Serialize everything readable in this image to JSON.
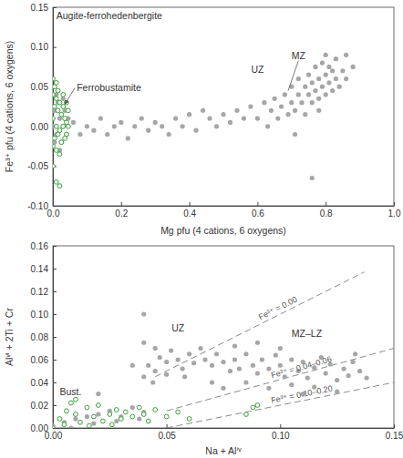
{
  "chart_data": [
    {
      "type": "scatter",
      "x_label": "Mg pfu (4 cations, 6 oxygens)",
      "y_label": "Fe³⁺ pfu (4 cations, 6 oxygens)",
      "annotations": [
        "Augite-ferrohedenbergite",
        "Ferrobustamite",
        "UZ",
        "MZ"
      ],
      "xlim": [
        0,
        1.0
      ],
      "ylim": [
        -0.1,
        0.15
      ],
      "xticks": [
        {
          "value": 0,
          "label": "0.0"
        },
        {
          "value": 0.2,
          "label": "0.2"
        },
        {
          "value": 0.4,
          "label": "0.4"
        },
        {
          "value": 0.6,
          "label": "0.6"
        },
        {
          "value": 0.8,
          "label": "0.8"
        },
        {
          "value": 1.0,
          "label": "1.0"
        }
      ],
      "yticks": [
        {
          "value": -0.1,
          "label": "-0.10"
        },
        {
          "value": -0.05,
          "label": "-0.05"
        },
        {
          "value": 0,
          "label": "0.00"
        },
        {
          "value": 0.05,
          "label": "0.05"
        },
        {
          "value": 0.1,
          "label": "0.10"
        },
        {
          "value": 0.15,
          "label": "0.15"
        }
      ],
      "series": [
        {
          "color": "#a6a6a6",
          "marker": "filled-circle",
          "x": [
            0.0,
            0.005,
            0.01,
            0.015,
            0.02,
            0.025,
            0.03,
            0.035,
            0.04,
            0.045,
            0.01,
            0.02,
            0.005,
            0.03,
            0.06,
            0.08,
            0.1,
            0.12,
            0.14,
            0.16,
            0.18,
            0.2,
            0.22,
            0.24,
            0.26,
            0.28,
            0.3,
            0.32,
            0.34,
            0.36,
            0.38,
            0.4,
            0.42,
            0.44,
            0.46,
            0.48,
            0.5,
            0.52,
            0.54,
            0.56,
            0.58,
            0.6,
            0.62,
            0.63,
            0.64,
            0.65,
            0.66,
            0.67,
            0.68,
            0.69,
            0.7,
            0.7,
            0.71,
            0.72,
            0.72,
            0.73,
            0.74,
            0.74,
            0.75,
            0.75,
            0.76,
            0.76,
            0.77,
            0.77,
            0.78,
            0.78,
            0.79,
            0.79,
            0.8,
            0.8,
            0.8,
            0.81,
            0.81,
            0.82,
            0.82,
            0.83,
            0.83,
            0.84,
            0.85,
            0.86,
            0.88,
            0.76,
            0.71,
            0.86,
            0.78
          ],
          "values": [
            0.0,
            0.02,
            -0.01,
            0.03,
            0.01,
            -0.02,
            0.0,
            0.02,
            -0.01,
            0.01,
            0.04,
            -0.03,
            -0.02,
            0.035,
            0.005,
            -0.01,
            0.0,
            -0.005,
            0.01,
            -0.01,
            0.0,
            0.005,
            -0.015,
            0.0,
            0.01,
            -0.005,
            0.005,
            0.0,
            -0.01,
            0.01,
            0.0,
            0.015,
            -0.005,
            0.02,
            0.01,
            0.0,
            0.015,
            0.005,
            0.02,
            0.01,
            0.025,
            0.01,
            0.03,
            0.0,
            0.02,
            0.035,
            0.01,
            0.025,
            0.04,
            0.015,
            0.03,
            0.05,
            0.02,
            0.04,
            0.06,
            0.03,
            0.05,
            0.015,
            0.04,
            0.065,
            0.03,
            0.055,
            0.045,
            0.075,
            0.035,
            0.06,
            0.05,
            0.08,
            0.04,
            0.065,
            0.09,
            0.055,
            0.075,
            0.045,
            0.07,
            0.06,
            0.085,
            0.05,
            0.07,
            0.06,
            0.075,
            -0.065,
            -0.01,
            0.09,
            0.02
          ]
        },
        {
          "color": "#3a9e3a",
          "marker": "open-circle",
          "x": [
            0.0,
            0.005,
            0.01,
            0.0,
            0.01,
            0.02,
            0.005,
            0.015,
            0.025,
            0.03,
            0.035,
            0.04,
            0.0,
            0.01,
            0.02,
            0.03,
            0.04,
            0.045,
            0.005,
            0.015,
            0.025,
            0.035,
            0.01,
            0.02,
            0.0,
            0.01,
            0.02,
            0.0,
            0.03,
            0.045,
            0.015,
            0.04
          ],
          "values": [
            0.06,
            0.05,
            0.055,
            0.04,
            0.035,
            0.03,
            0.025,
            0.02,
            0.015,
            0.025,
            0.01,
            0.005,
            0.01,
            0.0,
            -0.005,
            0.0,
            -0.01,
            0.02,
            -0.015,
            -0.01,
            -0.02,
            -0.015,
            -0.03,
            -0.035,
            -0.025,
            -0.07,
            -0.075,
            -0.05,
            0.04,
            0.0,
            0.045,
            0.03
          ]
        }
      ]
    },
    {
      "type": "scatter",
      "x_label": "Na + Alⁱᵛ",
      "y_label": "Alᵛⁱ + 2Ti + Cr",
      "annotations": [
        "UZ",
        "MZ–LZ",
        "Bust."
      ],
      "xlim": [
        0,
        0.15
      ],
      "ylim": [
        0,
        0.16
      ],
      "xticks": [
        {
          "value": 0,
          "label": "0.00"
        },
        {
          "value": 0.05,
          "label": "0.05"
        },
        {
          "value": 0.1,
          "label": "0.10"
        },
        {
          "value": 0.15,
          "label": "0.15"
        }
      ],
      "yticks": [
        {
          "value": 0,
          "label": "0.00"
        },
        {
          "value": 0.02,
          "label": "0.02"
        },
        {
          "value": 0.04,
          "label": "0.04"
        },
        {
          "value": 0.06,
          "label": "0.06"
        },
        {
          "value": 0.08,
          "label": "0.08"
        },
        {
          "value": 0.1,
          "label": "0.10"
        },
        {
          "value": 0.12,
          "label": "0.12"
        },
        {
          "value": 0.14,
          "label": "0.14"
        },
        {
          "value": 0.16,
          "label": "0.16"
        }
      ],
      "reference_lines": [
        {
          "label": "Fe³⁺ = 0.00",
          "line_style": "dashed",
          "x": [
            0.045,
            0.137
          ],
          "y": [
            0.045,
            0.137
          ]
        },
        {
          "label": "Fe³⁺ = 0.04–0.06",
          "line_style": "dashed",
          "x": [
            0.05,
            0.15
          ],
          "y": [
            0.015,
            0.07
          ]
        },
        {
          "label": "Fe³⁺ = 0.10–0.20",
          "line_style": "dashed",
          "x": [
            0.05,
            0.15
          ],
          "y": [
            0.0,
            0.04
          ]
        }
      ],
      "series": [
        {
          "color": "#a6a6a6",
          "marker": "filled-circle",
          "x": [
            0.0,
            0.005,
            0.01,
            0.015,
            0.02,
            0.025,
            0.03,
            0.035,
            0.04,
            0.008,
            0.018,
            0.028,
            0.038,
            0.04,
            0.042,
            0.045,
            0.047,
            0.05,
            0.052,
            0.055,
            0.057,
            0.06,
            0.062,
            0.065,
            0.067,
            0.07,
            0.072,
            0.075,
            0.078,
            0.044,
            0.05,
            0.058,
            0.04,
            0.035,
            0.045,
            0.08,
            0.082,
            0.085,
            0.088,
            0.09,
            0.092,
            0.095,
            0.098,
            0.1,
            0.102,
            0.105,
            0.108,
            0.11,
            0.112,
            0.115,
            0.118,
            0.12,
            0.122,
            0.125,
            0.128,
            0.13,
            0.132,
            0.135,
            0.138,
            0.085,
            0.095,
            0.105,
            0.115,
            0.08,
            0.1,
            0.09,
            0.07,
            0.075,
            0.11,
            0.125,
            0.133,
            0.04,
            0.02
          ],
          "values": [
            0.002,
            0.005,
            0.008,
            0.01,
            0.012,
            0.015,
            0.01,
            0.018,
            0.014,
            0.0,
            0.004,
            0.006,
            0.008,
            0.045,
            0.055,
            0.05,
            0.062,
            0.058,
            0.068,
            0.06,
            0.052,
            0.065,
            0.057,
            0.07,
            0.06,
            0.055,
            0.065,
            0.058,
            0.05,
            0.04,
            0.047,
            0.045,
            0.075,
            0.055,
            0.07,
            0.06,
            0.052,
            0.065,
            0.055,
            0.048,
            0.06,
            0.052,
            0.064,
            0.055,
            0.045,
            0.06,
            0.05,
            0.058,
            0.044,
            0.053,
            0.062,
            0.048,
            0.056,
            0.042,
            0.052,
            0.046,
            0.058,
            0.05,
            0.044,
            0.04,
            0.035,
            0.038,
            0.036,
            0.072,
            0.07,
            0.075,
            0.04,
            0.035,
            0.03,
            0.032,
            0.065,
            0.1,
            0.03
          ]
        },
        {
          "color": "#3a9e3a",
          "marker": "open-circle",
          "x": [
            0.0,
            0.003,
            0.006,
            0.01,
            0.012,
            0.015,
            0.018,
            0.02,
            0.022,
            0.025,
            0.028,
            0.03,
            0.032,
            0.035,
            0.038,
            0.04,
            0.042,
            0.045,
            0.05,
            0.055,
            0.008,
            0.01,
            0.005,
            0.016,
            0.026,
            0.085,
            0.088,
            0.09,
            0.06
          ],
          "values": [
            0.0,
            0.008,
            0.015,
            0.012,
            0.005,
            0.018,
            0.01,
            0.02,
            0.006,
            0.012,
            0.016,
            0.008,
            0.014,
            0.01,
            0.018,
            0.012,
            0.006,
            0.016,
            0.01,
            0.014,
            0.022,
            0.025,
            0.003,
            0.002,
            0.003,
            0.012,
            0.018,
            0.02,
            0.008
          ]
        }
      ]
    }
  ]
}
